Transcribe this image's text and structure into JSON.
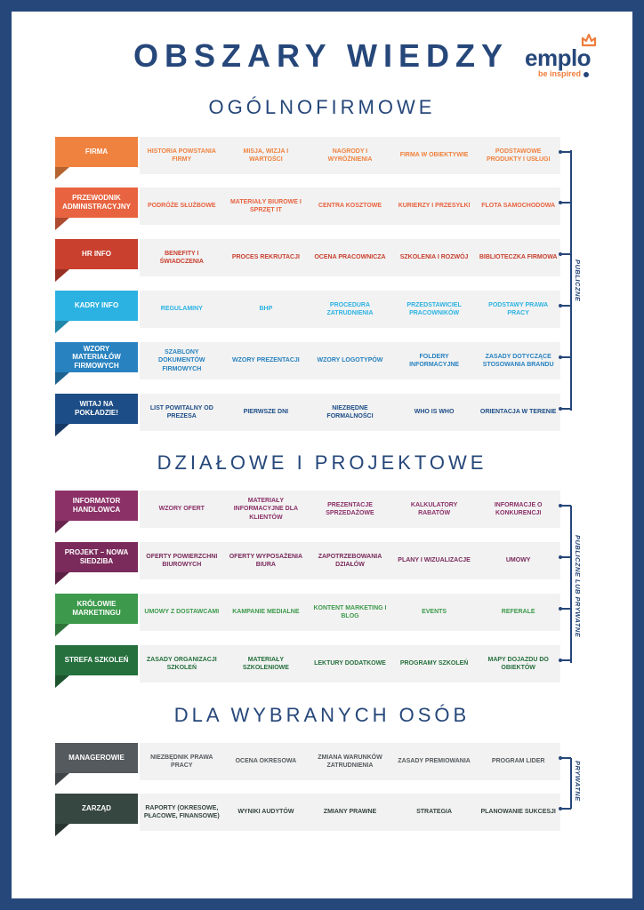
{
  "header": {
    "title": "OBSZARY WIEDZY",
    "logo_word": "emplo",
    "logo_tagline": "be inspired"
  },
  "colors": {
    "navy": "#26477a",
    "orange": "#f0823f",
    "coral": "#e8633f",
    "red": "#c9402f",
    "light_blue": "#2bb2e3",
    "mid_blue": "#2882c0",
    "dark_blue": "#1d4d86",
    "plum": "#8b3168",
    "purple": "#7a2a5b",
    "green": "#3d9a4c",
    "dark_green": "#25703d",
    "gray": "#555a5e",
    "dark_slate": "#364640"
  },
  "sections": [
    {
      "title": "OGÓLNOFIRMOWE",
      "side_label": "PUBLICZNE",
      "rows": [
        {
          "label": "FIRMA",
          "items": [
            "HISTORIA POWSTANIA FIRMY",
            "MISJA, WIZJA I WARTOŚCI",
            "NAGRODY I WYRÓŻNIENIA",
            "FIRMA W OBIEKTYWIE",
            "PODSTAWOWE PRODUKTY I USŁUGI"
          ]
        },
        {
          "label": "PRZEWODNIK ADMINISTRACYJNY",
          "items": [
            "PODRÓŻE SŁUŻBOWE",
            "MATERIAŁY BIUROWE I SPRZĘT IT",
            "CENTRA KOSZTOWE",
            "KURIERZY I PRZESYŁKI",
            "FLOTA SAMOCHODOWA"
          ]
        },
        {
          "label": "HR INFO",
          "items": [
            "BENEFITY I ŚWIADCZENIA",
            "PROCES REKRUTACJI",
            "OCENA PRACOWNICZA",
            "SZKOLENIA I ROZWÓJ",
            "BIBLIOTECZKA FIRMOWA"
          ]
        },
        {
          "label": "KADRY INFO",
          "items": [
            "REGULAMINY",
            "BHP",
            "PROCEDURA ZATRUDNIENIA",
            "PRZEDSTAWICIEL PRACOWNIKÓW",
            "PODSTAWY PRAWA PRACY"
          ]
        },
        {
          "label": "WZORY MATERIAŁÓW FIRMOWYCH",
          "items": [
            "SZABLONY DOKUMENTÓW FIRMOWYCH",
            "WZORY PREZENTACJI",
            "WZORY LOGOTYPÓW",
            "FOLDERY INFORMACYJNE",
            "ZASADY DOTYCZĄCE STOSOWANIA BRANDU"
          ]
        },
        {
          "label": "WITAJ NA POKŁADZIE!",
          "items": [
            "LIST POWITALNY OD PREZESA",
            "PIERWSZE DNI",
            "NIEZBĘDNE FORMALNOŚCI",
            "WHO IS WHO",
            "ORIENTACJA W TERENIE"
          ]
        }
      ]
    },
    {
      "title": "DZIAŁOWE I PROJEKTOWE",
      "side_label": "PUBLICZNE LUB PRYWATNE",
      "rows": [
        {
          "label": "INFORMATOR HANDLOWCA",
          "items": [
            "WZORY OFERT",
            "MATERIAŁY INFORMACYJNE DLA KLIENTÓW",
            "PREZENTACJE SPRZEDAŻOWE",
            "KALKULATORY RABATÓW",
            "INFORMACJE O KONKURENCJI"
          ]
        },
        {
          "label": "PROJEKT – NOWA SIEDZIBA",
          "items": [
            "OFERTY POWIERZCHNI BIUROWYCH",
            "OFERTY WYPOSAŻENIA BIURA",
            "ZAPOTRZEBOWANIA DZIAŁÓW",
            "PLANY I WIZUALIZACJE",
            "UMOWY"
          ]
        },
        {
          "label": "KRÓLOWIE MARKETINGU",
          "items": [
            "UMOWY Z DOSTAWCAMI",
            "KAMPANIE MEDIALNE",
            "KONTENT MARKETING I BLOG",
            "EVENTS",
            "REFERALE"
          ]
        },
        {
          "label": "STREFA SZKOLEŃ",
          "items": [
            "ZASADY ORGANIZACJI SZKOLEŃ",
            "MATERIAŁY SZKOLENIOWE",
            "LEKTURY DODATKOWE",
            "PROGRAMY SZKOLEŃ",
            "MAPY DOJAZDU DO OBIEKTÓW"
          ]
        }
      ]
    },
    {
      "title": "DLA WYBRANYCH OSÓB",
      "side_label": "PRYWATNE",
      "rows": [
        {
          "label": "MANAGEROWIE",
          "items": [
            "NIEZBĘDNIK PRAWA PRACY",
            "OCENA OKRESOWA",
            "ZMIANA WARUNKÓW ZATRUDNIENIA",
            "ZASADY PREMIOWANIA",
            "PROGRAM LIDER"
          ]
        },
        {
          "label": "ZARZĄD",
          "items": [
            "RAPORTY (OKRESOWE, PŁACOWE, FINANSOWE)",
            "WYNIKI AUDYTÓW",
            "ZMIANY PRAWNE",
            "STRATEGIA",
            "PLANOWANIE SUKCESJI"
          ]
        }
      ]
    }
  ]
}
